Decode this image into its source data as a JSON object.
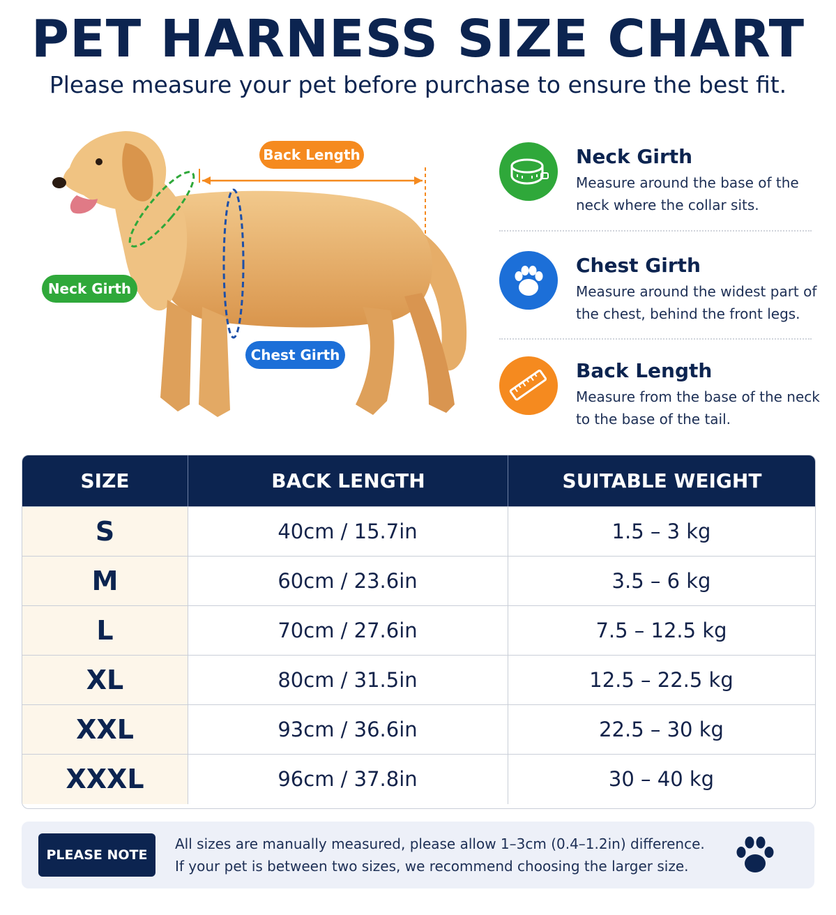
{
  "header": {
    "title": "PET HARNESS SIZE CHART",
    "subtitle": "Please measure your pet before purchase to ensure the best fit."
  },
  "illustration": {
    "labels": {
      "back_length": "Back Length",
      "neck_girth": "Neck Girth",
      "chest_girth": "Chest Girth"
    }
  },
  "measurements": [
    {
      "title": "Neck Girth",
      "description": "Measure around the base of the neck where the collar sits.",
      "icon": "collar-icon",
      "color": "#2fa83a"
    },
    {
      "title": "Chest Girth",
      "description": "Measure around the widest part of the chest, behind the front legs.",
      "icon": "paw-icon",
      "color": "#1c6fd8"
    },
    {
      "title": "Back Length",
      "description": "Measure from the base of the neck to the base of the tail.",
      "icon": "ruler-icon",
      "color": "#f58a1f"
    }
  ],
  "table": {
    "headers": [
      "SIZE",
      "BACK LENGTH",
      "SUITABLE WEIGHT"
    ],
    "rows": [
      {
        "size": "S",
        "back_length": "40cm / 15.7in",
        "weight": "1.5 – 3 kg"
      },
      {
        "size": "M",
        "back_length": "60cm / 23.6in",
        "weight": "3.5 – 6 kg"
      },
      {
        "size": "L",
        "back_length": "70cm / 27.6in",
        "weight": "7.5 – 12.5 kg"
      },
      {
        "size": "XL",
        "back_length": "80cm / 31.5in",
        "weight": "12.5 – 22.5 kg"
      },
      {
        "size": "XXL",
        "back_length": "93cm / 36.6in",
        "weight": "22.5 – 30 kg"
      },
      {
        "size": "XXXL",
        "back_length": "96cm / 37.8in",
        "weight": "30 – 40 kg"
      }
    ]
  },
  "note": {
    "label": "PLEASE NOTE",
    "line1": "All sizes are manually measured, please allow 1–3cm (0.4–1.2in) difference.",
    "line2": "If your pet is between two sizes, we recommend choosing the larger size.",
    "icon": "paw-icon"
  }
}
